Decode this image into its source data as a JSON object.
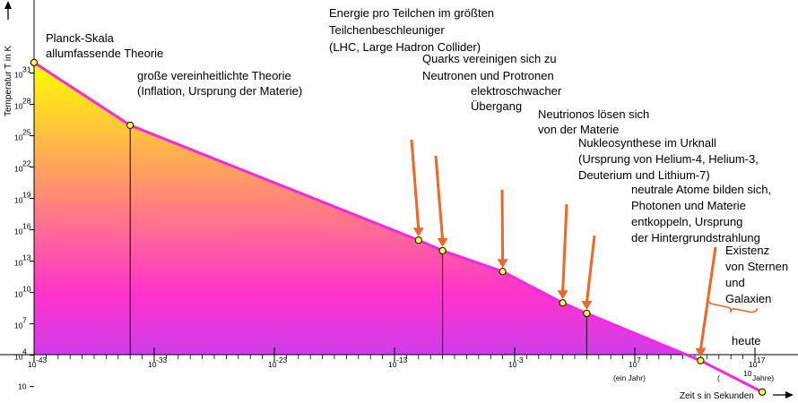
{
  "colors": {
    "line": "#ff22ee",
    "point_fill": "#ffff33",
    "arrow": "#f26522",
    "brace": "#f26522",
    "gradient_top": "#ffff00",
    "gradient_mid": "#ff33cc",
    "gradient_bottom": "#b044ff"
  },
  "chart_data": {
    "type": "line",
    "xlabel": "Zeit s in Sekunden",
    "ylabel": "Temperatur T in K",
    "x_scale": "log10",
    "y_scale": "log10",
    "x_ticks": [
      {
        "exp": "-43",
        "note": ""
      },
      {
        "exp": "-33",
        "note": ""
      },
      {
        "exp": "-23",
        "note": ""
      },
      {
        "exp": "-13",
        "note": ""
      },
      {
        "exp": "-3",
        "note": ""
      },
      {
        "exp": "7",
        "note": "(ein Jahr)"
      },
      {
        "exp": "17",
        "note": "( 10 Jahre)",
        "note_exp": "10"
      }
    ],
    "y_ticks": [
      "31",
      "28",
      "25",
      "22",
      "19",
      "16",
      "13",
      "10",
      "7",
      "4"
    ],
    "y_tick_plain": "10",
    "series": [
      {
        "points": [
          {
            "x": 1e-43,
            "y": 1e+32
          },
          {
            "x": 1e-35,
            "y": 1e+26
          },
          {
            "x": 1e-11,
            "y": 1000000000000000.0
          },
          {
            "x": 1e-09,
            "y": 100000000000000.0
          },
          {
            "x": 0.0001,
            "y": 1000000000000.0
          },
          {
            "x": 10.0,
            "y": 1000000000.0
          },
          {
            "x": 1000.0,
            "y": 100000000.0
          },
          {
            "x": 3000000000000.0,
            "y": 3000.0
          },
          {
            "x": 4e+17,
            "y": 3
          }
        ]
      }
    ],
    "annotations": [
      {
        "lines": [
          "Planck-Skala",
          "allumfassende Theorie"
        ]
      },
      {
        "lines": [
          "große vereinheitlichte Theorie",
          "(Inflation, Ursprung der Materie)"
        ]
      },
      {
        "lines": [
          "Energie pro Teilchen im größten",
          "Teilchenbeschleuniger",
          "(LHC, Large Hadron Collider)"
        ]
      },
      {
        "lines": [
          "Quarks vereinigen sich zu",
          "Neutronen und Protronen"
        ]
      },
      {
        "lines": [
          "elektroschwacher",
          "Übergang"
        ]
      },
      {
        "lines": [
          "Neutrionos lösen sich",
          "von der Materie"
        ]
      },
      {
        "lines": [
          "Nukleosynthese im Urknall",
          "(Ursprung von Helium-4, Helium-3,",
          "Deuterium und Lithium-7)"
        ]
      },
      {
        "lines": [
          "neutrale Atome bilden sich,",
          "Photonen und Materie",
          "entkoppeln, Ursprung",
          "der Hintergrundstrahlung"
        ]
      },
      {
        "lines": [
          "Existenz",
          "von Sternen",
          "und",
          "Galaxien"
        ]
      },
      {
        "lines": [
          "heute"
        ]
      }
    ]
  }
}
